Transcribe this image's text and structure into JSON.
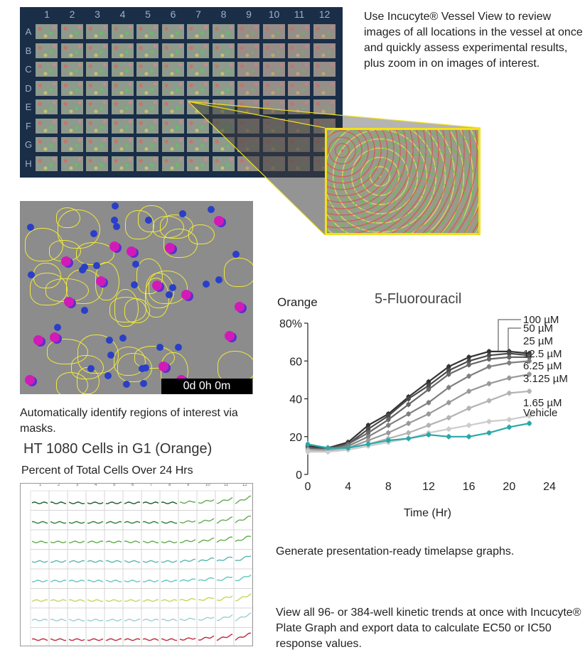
{
  "vessel": {
    "columns": [
      "1",
      "2",
      "3",
      "4",
      "5",
      "6",
      "7",
      "8",
      "9",
      "10",
      "11",
      "12"
    ],
    "rows": [
      "A",
      "B",
      "C",
      "D",
      "E",
      "F",
      "G",
      "H"
    ],
    "accent": "#f2e01a"
  },
  "captions": {
    "vessel_view": "Use Incucyte® Vessel View to review images of all locations in the vessel at once and quickly assess experimental results, plus zoom in on images of interest.",
    "masks": "Automatically identify regions of interest via masks.",
    "timelapse": "Generate presentation-ready timelapse graphs.",
    "plate_graph": "View all 96- or 384-well kinetic trends at once with Incucyte® Plate Graph and export data to calculate EC50 or IC50 response values."
  },
  "mask_image": {
    "timestamp": "0d 0h 0m"
  },
  "plate_graph": {
    "title": "HT 1080 Cells in G1 (Orange)",
    "subtitle": "Percent of Total Cells Over 24 Hrs",
    "columns": [
      "1",
      "2",
      "3",
      "4",
      "5",
      "6",
      "7",
      "8",
      "9",
      "10",
      "11",
      "12"
    ],
    "row_colors": [
      "#1e5a2a",
      "#2f7d3a",
      "#5fae4a",
      "#58b7b2",
      "#5fc9c0",
      "#c9d45a",
      "#9ad0d0",
      "#c0283c"
    ]
  },
  "chart_data": {
    "type": "line",
    "title": "5-Fluorouracil",
    "ylabel": "Orange",
    "xlabel": "Time (Hr)",
    "xlim": [
      0,
      24
    ],
    "ylim": [
      0,
      80
    ],
    "x_ticks": [
      "0",
      "4",
      "8",
      "12",
      "16",
      "20",
      "24"
    ],
    "y_ticks": [
      "0",
      "20",
      "40",
      "60",
      "80%"
    ],
    "x": [
      0,
      2,
      4,
      6,
      8,
      10,
      12,
      14,
      16,
      18,
      20,
      22
    ],
    "series": [
      {
        "name": "100 µM",
        "color": "#333333",
        "values": [
          15,
          14,
          17,
          26,
          32,
          41,
          49,
          57,
          62,
          65,
          65,
          64
        ]
      },
      {
        "name": "50 µM",
        "color": "#4a4a4a",
        "values": [
          14,
          14,
          16,
          24,
          31,
          40,
          47,
          55,
          60,
          63,
          64,
          63
        ]
      },
      {
        "name": "25 µM",
        "color": "#666666",
        "values": [
          14,
          13,
          16,
          22,
          29,
          37,
          45,
          53,
          58,
          61,
          62,
          62
        ]
      },
      {
        "name": "12.5 µM",
        "color": "#7f7f7f",
        "values": [
          13,
          13,
          15,
          20,
          26,
          32,
          38,
          46,
          52,
          57,
          59,
          60
        ]
      },
      {
        "name": "6.25 µM",
        "color": "#999999",
        "values": [
          13,
          13,
          14,
          18,
          22,
          27,
          32,
          38,
          44,
          48,
          51,
          53
        ]
      },
      {
        "name": "3.125 µM",
        "color": "#b3b3b3",
        "values": [
          13,
          12,
          14,
          16,
          19,
          22,
          26,
          30,
          35,
          39,
          43,
          44
        ]
      },
      {
        "name": "1.65 µM",
        "color": "#cccccc",
        "values": [
          12,
          12,
          13,
          15,
          17,
          19,
          22,
          24,
          26,
          28,
          29,
          31
        ]
      },
      {
        "name": "Vehicle",
        "color": "#2aa8a8",
        "values": [
          16,
          14,
          14,
          16,
          18,
          19,
          21,
          20,
          20,
          22,
          25,
          27
        ]
      }
    ]
  }
}
